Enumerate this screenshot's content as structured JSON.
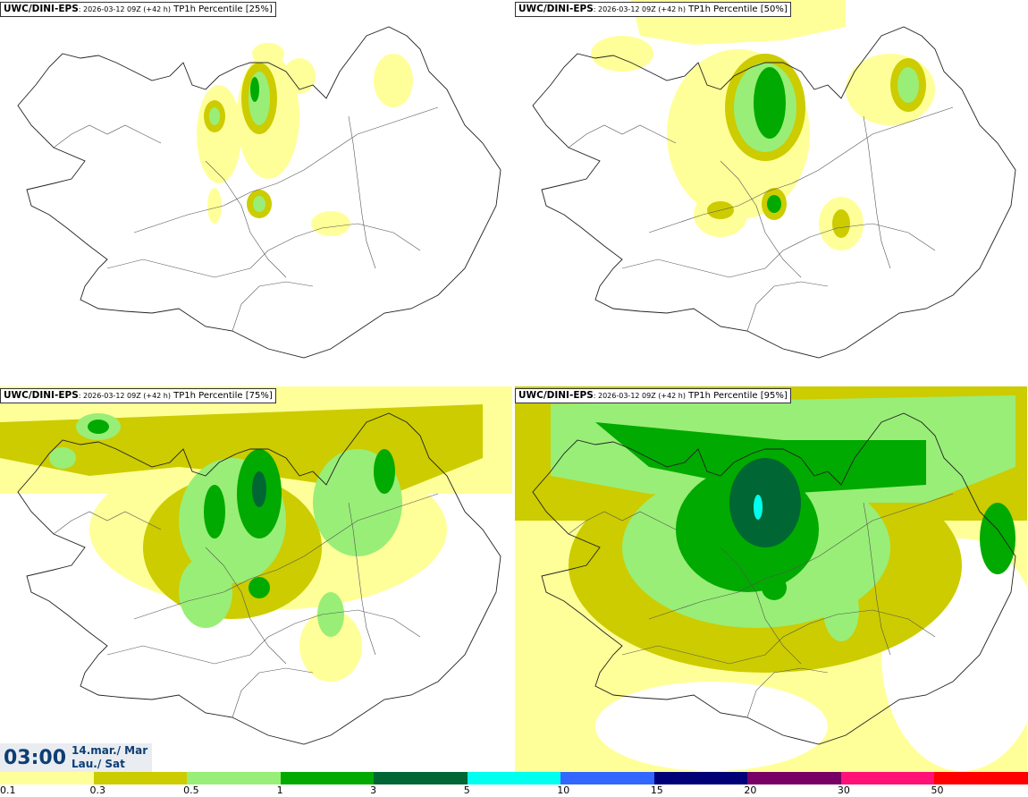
{
  "panels": [
    {
      "source": "UWC/DINI-EPS",
      "run": ": 2026-03-12 09Z (+42 h)",
      "param": " TP1h Percentile [25%]"
    },
    {
      "source": "UWC/DINI-EPS",
      "run": ": 2026-03-12 09Z (+42 h)",
      "param": " TP1h Percentile [50%]"
    },
    {
      "source": "UWC/DINI-EPS",
      "run": ": 2026-03-12 09Z (+42 h)",
      "param": " TP1h Percentile [75%]"
    },
    {
      "source": "UWC/DINI-EPS",
      "run": ": 2026-03-12 09Z (+42 h)",
      "param": " TP1h Percentile [95%]"
    }
  ],
  "valid_time": {
    "time": "03:00",
    "date_line1": "14.mar./ Mar",
    "date_line2": "Lau./ Sat"
  },
  "colorbar": {
    "labels": [
      "0.1",
      "0.3",
      "0.5",
      "1",
      "3",
      "5",
      "10",
      "15",
      "20",
      "30",
      "50"
    ],
    "colors": [
      "#ffff99",
      "#cccc00",
      "#99ee77",
      "#00aa00",
      "#006633",
      "#00ffee",
      "#3366ff",
      "#000077",
      "#770066",
      "#ff1177",
      "#ff0000"
    ]
  }
}
